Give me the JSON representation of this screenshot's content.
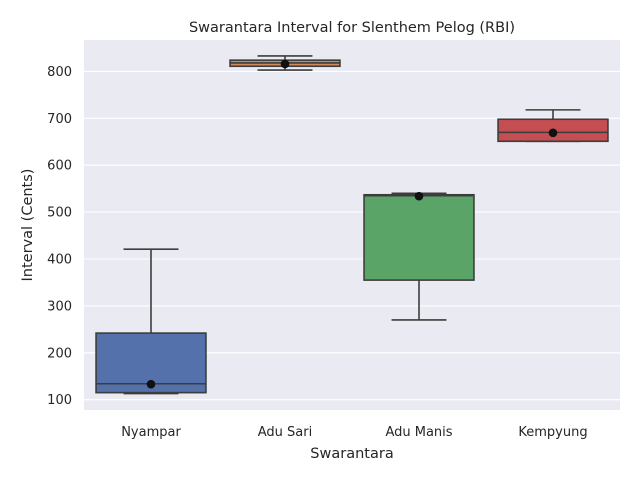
{
  "chart_data": {
    "type": "box",
    "title": "Swarantara Interval for Slenthem Pelog (RBI)",
    "xlabel": "Swarantara",
    "ylabel": "Interval (Cents)",
    "ylim": [
      78,
      867
    ],
    "yticks": [
      100,
      200,
      300,
      400,
      500,
      600,
      700,
      800
    ],
    "grid": true,
    "categories": [
      "Nyampar",
      "Adu Sari",
      "Adu Manis",
      "Kempyung"
    ],
    "boxes": [
      {
        "category": "Nyampar",
        "min": 113,
        "q1": 115,
        "median": 134,
        "q3": 242,
        "max": 421,
        "mean": 133,
        "color": "#5471ab"
      },
      {
        "category": "Adu Sari",
        "min": 803,
        "q1": 811,
        "median": 818,
        "q3": 824,
        "max": 833,
        "mean": 816,
        "color": "#d1885c"
      },
      {
        "category": "Adu Manis",
        "min": 270,
        "q1": 355,
        "median": 535,
        "q3": 537,
        "max": 540,
        "mean": 534,
        "color": "#59a466"
      },
      {
        "category": "Kempyung",
        "min": 651,
        "q1": 651,
        "median": 670,
        "q3": 698,
        "max": 718,
        "mean": 669,
        "color": "#c44e52"
      }
    ]
  },
  "colors": {
    "background": "#ffffff",
    "plot_background": "#eaeaf2",
    "grid": "#ffffff",
    "box_edge": "#3d3d3d",
    "mean_marker": "#111111"
  }
}
